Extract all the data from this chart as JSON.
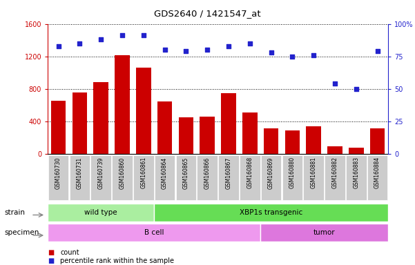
{
  "title": "GDS2640 / 1421547_at",
  "samples": [
    "GSM160730",
    "GSM160731",
    "GSM160739",
    "GSM160860",
    "GSM160861",
    "GSM160864",
    "GSM160865",
    "GSM160866",
    "GSM160867",
    "GSM160868",
    "GSM160869",
    "GSM160880",
    "GSM160881",
    "GSM160882",
    "GSM160883",
    "GSM160884"
  ],
  "counts": [
    650,
    755,
    880,
    1210,
    1060,
    640,
    450,
    455,
    750,
    510,
    310,
    285,
    340,
    90,
    70,
    315
  ],
  "percentiles": [
    83,
    85,
    88,
    91,
    91,
    80,
    79,
    80,
    83,
    85,
    78,
    75,
    76,
    54,
    50,
    79
  ],
  "bar_color": "#cc0000",
  "dot_color": "#2222cc",
  "ylim_left": [
    0,
    1600
  ],
  "ylim_right": [
    0,
    100
  ],
  "yticks_left": [
    0,
    400,
    800,
    1200,
    1600
  ],
  "yticks_right": [
    0,
    25,
    50,
    75,
    100
  ],
  "strain_groups": [
    {
      "label": "wild type",
      "start": 0,
      "end": 5,
      "color": "#aaeea0"
    },
    {
      "label": "XBP1s transgenic",
      "start": 5,
      "end": 16,
      "color": "#66dd55"
    }
  ],
  "specimen_groups": [
    {
      "label": "B cell",
      "start": 0,
      "end": 10,
      "color": "#ee99ee"
    },
    {
      "label": "tumor",
      "start": 10,
      "end": 16,
      "color": "#dd77dd"
    }
  ],
  "legend_count_label": "count",
  "legend_percentile_label": "percentile rank within the sample",
  "strain_label": "strain",
  "specimen_label": "specimen",
  "left_axis_color": "#cc0000",
  "right_axis_color": "#2222cc"
}
